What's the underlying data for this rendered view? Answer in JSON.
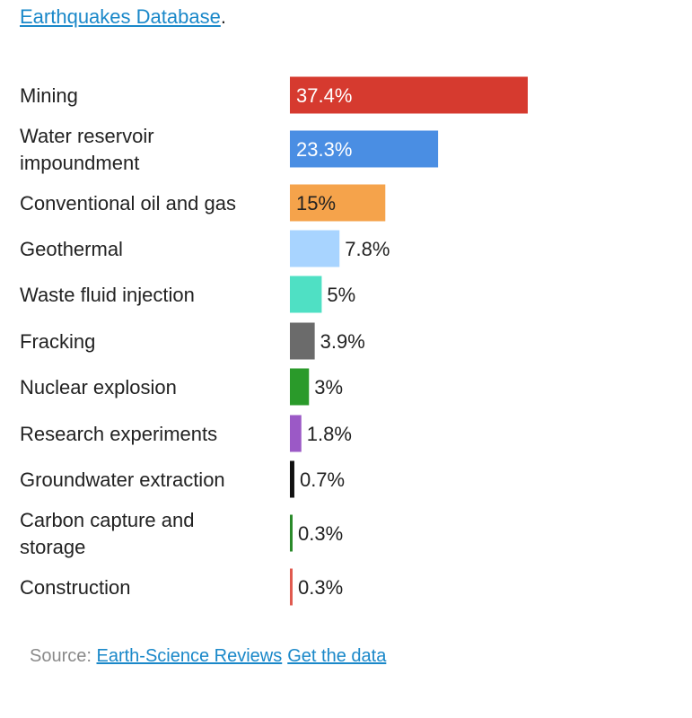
{
  "header": {
    "link_text": "Earthquakes Database",
    "trailing_text": "."
  },
  "chart_data": {
    "type": "bar",
    "orientation": "horizontal",
    "categories": [
      "Mining",
      "Water reservoir impoundment",
      "Conventional oil and gas",
      "Geothermal",
      "Waste fluid injection",
      "Fracking",
      "Nuclear explosion",
      "Research experiments",
      "Groundwater extraction",
      "Carbon capture and storage",
      "Construction"
    ],
    "values": [
      37.4,
      23.3,
      15,
      7.8,
      5,
      3.9,
      3,
      1.8,
      0.7,
      0.3,
      0.3
    ],
    "value_labels": [
      "37.4%",
      "23.3%",
      "15%",
      "7.8%",
      "5%",
      "3.9%",
      "3%",
      "1.8%",
      "0.7%",
      "0.3%",
      "0.3%"
    ],
    "colors": [
      "#d63a2f",
      "#4a8ee3",
      "#f5a34b",
      "#a8d4ff",
      "#4fe0c4",
      "#6b6b6b",
      "#2a9a2a",
      "#9b59c6",
      "#111111",
      "#2a8a2a",
      "#e05a4f"
    ],
    "label_inside": [
      true,
      true,
      true,
      false,
      false,
      false,
      false,
      false,
      false,
      false,
      false
    ],
    "label_colors": [
      "#ffffff",
      "#ffffff",
      "#222222",
      "#222222",
      "#222222",
      "#222222",
      "#222222",
      "#222222",
      "#222222",
      "#222222",
      "#222222"
    ],
    "xlim": [
      0,
      37.4
    ],
    "grid": false,
    "legend": "none"
  },
  "footer": {
    "source_prefix": "Source:",
    "source_link": "Earth-Science Reviews",
    "data_link": "Get the data"
  }
}
